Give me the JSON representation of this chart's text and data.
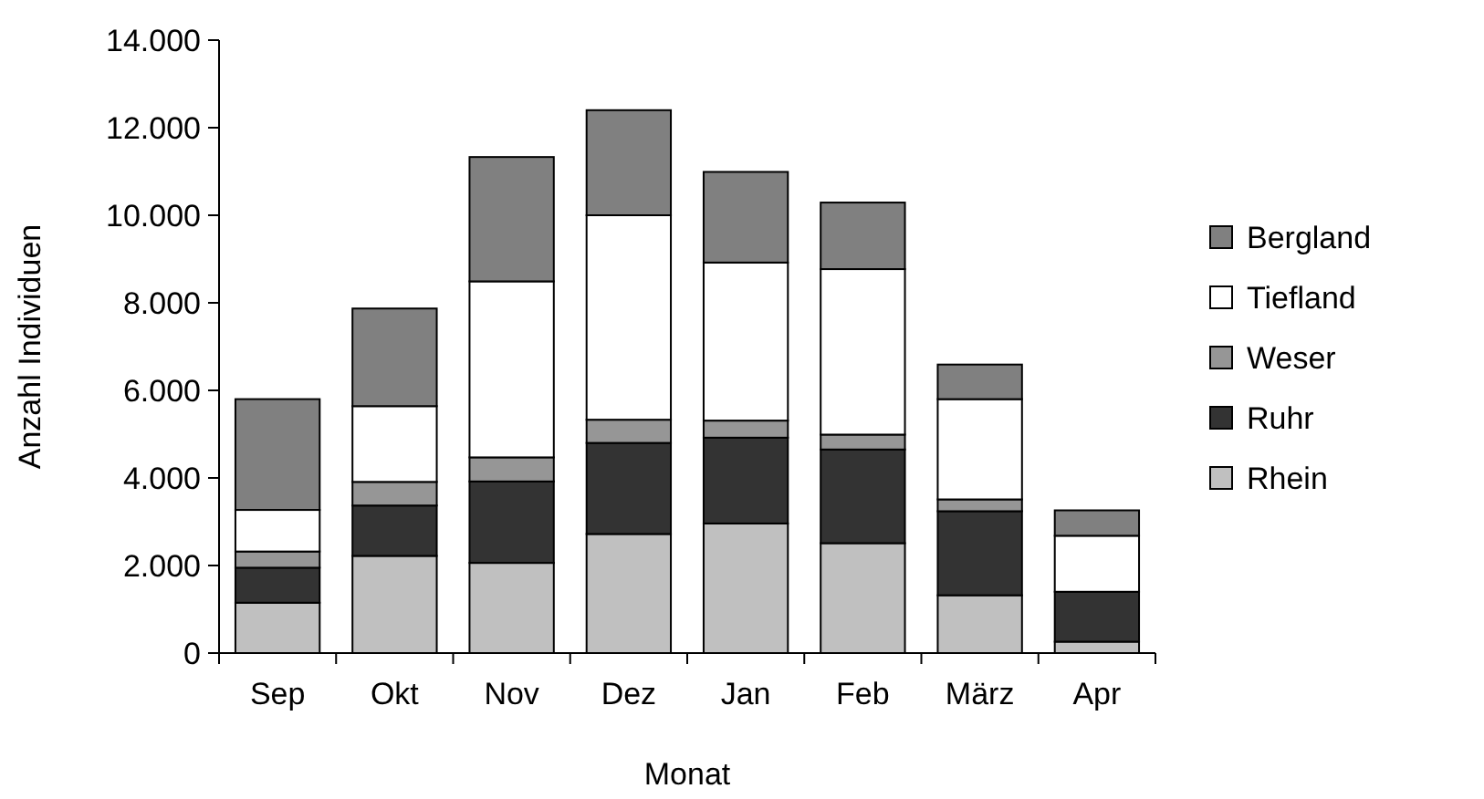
{
  "chart_data": {
    "type": "bar",
    "stacked": true,
    "xlabel": "Monat",
    "ylabel": "Anzahl Individuen",
    "categories": [
      "Sep",
      "Okt",
      "Nov",
      "Dez",
      "Jan",
      "Feb",
      "März",
      "Apr"
    ],
    "series": [
      {
        "name": "Rhein",
        "color": "#c0c0c0",
        "values": [
          1150,
          2220,
          2060,
          2720,
          2960,
          2510,
          1320,
          260
        ]
      },
      {
        "name": "Ruhr",
        "color": "#333333",
        "values": [
          800,
          1150,
          1860,
          2080,
          1960,
          2140,
          1920,
          1140
        ]
      },
      {
        "name": "Weser",
        "color": "#969696",
        "values": [
          370,
          540,
          550,
          530,
          390,
          340,
          270,
          0
        ]
      },
      {
        "name": "Tiefland",
        "color": "#ffffff",
        "values": [
          950,
          1730,
          4020,
          4670,
          3610,
          3780,
          2290,
          1280
        ]
      },
      {
        "name": "Bergland",
        "color": "#808080",
        "values": [
          2530,
          2230,
          2840,
          2400,
          2070,
          1520,
          790,
          580
        ]
      }
    ],
    "ylim": [
      0,
      14000
    ],
    "yticks": [
      0,
      {
        "value": 2000,
        "label": "2.000"
      },
      {
        "value": 4000,
        "label": "4.000"
      },
      {
        "value": 6000,
        "label": "6.000"
      },
      {
        "value": 8000,
        "label": "8.000"
      },
      {
        "value": 10000,
        "label": "10.000"
      },
      {
        "value": 12000,
        "label": "12.000"
      },
      {
        "value": 14000,
        "label": "14.000"
      }
    ],
    "grid": false,
    "legend": "right"
  }
}
